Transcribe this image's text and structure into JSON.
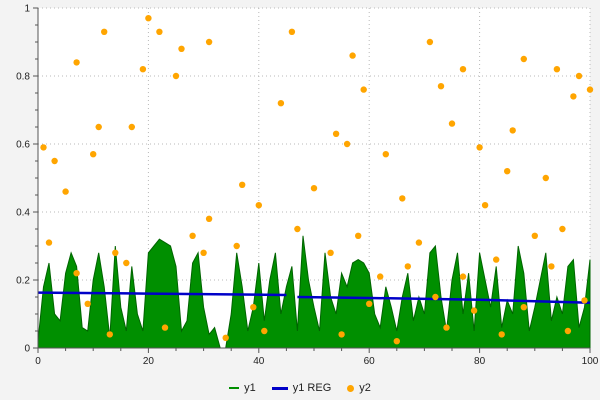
{
  "chart_data": {
    "type": "mixed",
    "title": "",
    "xlabel": "",
    "ylabel": "",
    "xlim": [
      0,
      100
    ],
    "ylim": [
      0,
      1
    ],
    "x_ticks": [
      0,
      20,
      40,
      60,
      80,
      100
    ],
    "x_tick_labels": [
      "0",
      "20",
      "40",
      "60",
      "80",
      "100"
    ],
    "y_ticks": [
      0,
      0.2,
      0.4,
      0.6,
      0.8,
      1
    ],
    "y_tick_labels": [
      "0",
      "0.2",
      "0.4",
      "0.6",
      "0.8",
      "1"
    ],
    "x_minor_step": 5,
    "y_minor_step": 0.05,
    "grid": true,
    "grid_style": "dotted",
    "legend_position": "bottom",
    "colors": {
      "y1_fill": "#008f00",
      "y1_stroke": "#006400",
      "reg_line": "#0000c8",
      "y2_dot": "#ffa500",
      "plot_bg": "#ffffff",
      "outer_bg": "#f3f3f3",
      "grid": "#b8b8b8",
      "axis": "#555555",
      "tick_text": "#222222"
    },
    "legend": {
      "y1": "y1",
      "y1_reg": "y1 REG",
      "y2": "y2"
    },
    "series": [
      {
        "name": "y1",
        "type": "area",
        "x_start": 0,
        "x_step": 1,
        "values": [
          0.02,
          0.18,
          0.25,
          0.1,
          0.08,
          0.22,
          0.28,
          0.24,
          0.06,
          0.05,
          0.2,
          0.28,
          0.18,
          0.03,
          0.3,
          0.12,
          0.05,
          0.24,
          0.1,
          0.05,
          0.28,
          0.3,
          0.32,
          0.31,
          0.3,
          0.24,
          0.05,
          0.08,
          0.25,
          0.28,
          0.12,
          0.04,
          0.06,
          0.0,
          0.0,
          0.1,
          0.28,
          0.18,
          0.05,
          0.12,
          0.25,
          0.08,
          0.2,
          0.28,
          0.1,
          0.18,
          0.24,
          0.05,
          0.33,
          0.2,
          0.12,
          0.05,
          0.28,
          0.15,
          0.1,
          0.22,
          0.18,
          0.25,
          0.26,
          0.25,
          0.22,
          0.1,
          0.06,
          0.18,
          0.12,
          0.05,
          0.15,
          0.22,
          0.08,
          0.15,
          0.1,
          0.28,
          0.3,
          0.15,
          0.05,
          0.2,
          0.28,
          0.1,
          0.22,
          0.05,
          0.28,
          0.2,
          0.12,
          0.24,
          0.06,
          0.14,
          0.1,
          0.3,
          0.22,
          0.05,
          0.12,
          0.2,
          0.28,
          0.08,
          0.15,
          0.1,
          0.24,
          0.26,
          0.06,
          0.12,
          0.26
        ]
      },
      {
        "name": "y1 REG",
        "type": "line",
        "segments": [
          [
            [
              0,
              0.163
            ],
            [
              20,
              0.16
            ],
            [
              45,
              0.156
            ]
          ],
          [
            [
              47,
              0.15
            ],
            [
              60,
              0.147
            ],
            [
              80,
              0.142
            ],
            [
              100,
              0.133
            ]
          ]
        ]
      },
      {
        "name": "y2",
        "type": "scatter",
        "points": [
          [
            1,
            0.59
          ],
          [
            2,
            0.31
          ],
          [
            3,
            0.55
          ],
          [
            5,
            0.46
          ],
          [
            7,
            0.84
          ],
          [
            7,
            0.22
          ],
          [
            9,
            0.13
          ],
          [
            10,
            0.57
          ],
          [
            11,
            0.65
          ],
          [
            12,
            0.93
          ],
          [
            13,
            0.04
          ],
          [
            14,
            0.28
          ],
          [
            16,
            0.25
          ],
          [
            17,
            0.65
          ],
          [
            19,
            0.82
          ],
          [
            20,
            0.97
          ],
          [
            22,
            0.93
          ],
          [
            23,
            0.06
          ],
          [
            25,
            0.8
          ],
          [
            26,
            0.88
          ],
          [
            28,
            0.33
          ],
          [
            30,
            0.28
          ],
          [
            31,
            0.9
          ],
          [
            31,
            0.38
          ],
          [
            34,
            0.03
          ],
          [
            36,
            0.3
          ],
          [
            37,
            0.48
          ],
          [
            39,
            0.12
          ],
          [
            40,
            0.42
          ],
          [
            41,
            0.05
          ],
          [
            44,
            0.72
          ],
          [
            46,
            0.93
          ],
          [
            47,
            0.35
          ],
          [
            50,
            0.47
          ],
          [
            53,
            0.28
          ],
          [
            54,
            0.63
          ],
          [
            55,
            0.04
          ],
          [
            56,
            0.6
          ],
          [
            57,
            0.86
          ],
          [
            58,
            0.33
          ],
          [
            59,
            0.76
          ],
          [
            60,
            0.13
          ],
          [
            62,
            0.21
          ],
          [
            63,
            0.57
          ],
          [
            65,
            0.02
          ],
          [
            66,
            0.44
          ],
          [
            67,
            0.24
          ],
          [
            69,
            0.31
          ],
          [
            71,
            0.9
          ],
          [
            72,
            0.15
          ],
          [
            73,
            0.77
          ],
          [
            74,
            0.06
          ],
          [
            75,
            0.66
          ],
          [
            77,
            0.82
          ],
          [
            77,
            0.21
          ],
          [
            79,
            0.11
          ],
          [
            80,
            0.59
          ],
          [
            81,
            0.42
          ],
          [
            83,
            0.26
          ],
          [
            84,
            0.04
          ],
          [
            85,
            0.52
          ],
          [
            86,
            0.64
          ],
          [
            88,
            0.85
          ],
          [
            88,
            0.12
          ],
          [
            90,
            0.33
          ],
          [
            92,
            0.5
          ],
          [
            93,
            0.24
          ],
          [
            94,
            0.82
          ],
          [
            95,
            0.35
          ],
          [
            96,
            0.05
          ],
          [
            97,
            0.74
          ],
          [
            98,
            0.8
          ],
          [
            99,
            0.14
          ],
          [
            100,
            0.76
          ]
        ]
      }
    ]
  }
}
